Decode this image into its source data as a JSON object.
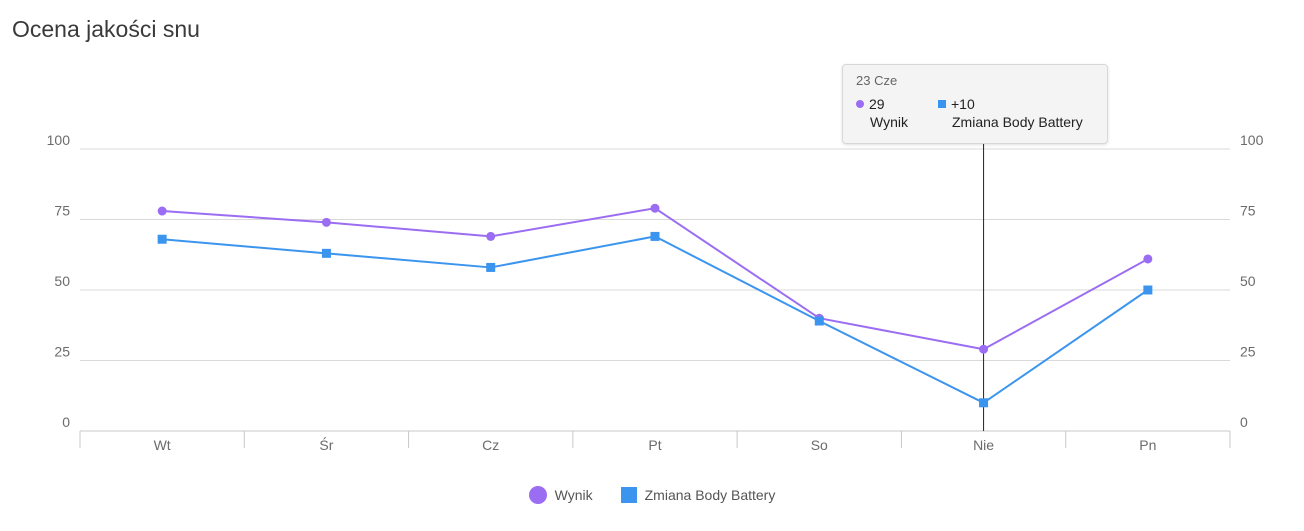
{
  "title": "Ocena jakości snu",
  "chart_data": {
    "type": "line",
    "categories": [
      "Wt",
      "Śr",
      "Cz",
      "Pt",
      "So",
      "Nie",
      "Pn"
    ],
    "series": [
      {
        "name": "Wynik",
        "values": [
          78,
          74,
          69,
          79,
          40,
          29,
          61
        ],
        "color": "#9b6df2",
        "marker": "circle"
      },
      {
        "name": "Zmiana Body Battery",
        "values": [
          68,
          63,
          58,
          69,
          39,
          10,
          50
        ],
        "color": "#3b95ee",
        "marker": "square"
      }
    ],
    "yticks_left": [
      "100",
      "75",
      "50",
      "25",
      "0"
    ],
    "yticks_right": [
      "100",
      "75",
      "50",
      "25",
      "0"
    ],
    "ylim": [
      0,
      100
    ],
    "grid": true,
    "legend": "bottom-center"
  },
  "tooltip": {
    "date": "23 Cze",
    "category_index": 5,
    "items": [
      {
        "value": "29",
        "name": "Wynik",
        "color": "#9b6df2"
      },
      {
        "value": "+10",
        "name": "Zmiana Body Battery",
        "color": "#3b95ee"
      }
    ]
  }
}
